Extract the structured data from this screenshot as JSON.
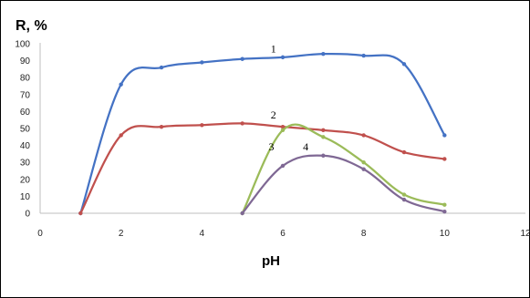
{
  "chart_data": {
    "type": "line",
    "title": "",
    "ylabel": "R, %",
    "xlabel": "pH",
    "xlim": [
      0,
      12
    ],
    "ylim": [
      0,
      100
    ],
    "x_ticks": [
      0,
      2,
      4,
      6,
      8,
      10,
      12
    ],
    "y_ticks": [
      0,
      10,
      20,
      30,
      40,
      50,
      60,
      70,
      80,
      90,
      100
    ],
    "grid": false,
    "legend": "none",
    "series": [
      {
        "name": "1",
        "color": "#4472c4",
        "points": [
          [
            1,
            0
          ],
          [
            2,
            76
          ],
          [
            3,
            86
          ],
          [
            4,
            89
          ],
          [
            5,
            91
          ],
          [
            6,
            92
          ],
          [
            7,
            94
          ],
          [
            8,
            93
          ],
          [
            9,
            88
          ],
          [
            10,
            46
          ]
        ]
      },
      {
        "name": "2",
        "color": "#c0504d",
        "points": [
          [
            1,
            0
          ],
          [
            2,
            46
          ],
          [
            3,
            51
          ],
          [
            4,
            52
          ],
          [
            5,
            53
          ],
          [
            6,
            51
          ],
          [
            7,
            49
          ],
          [
            8,
            46
          ],
          [
            9,
            36
          ],
          [
            10,
            32
          ]
        ]
      },
      {
        "name": "3",
        "color": "#9bbb59",
        "points": [
          [
            5,
            0
          ],
          [
            6,
            49
          ],
          [
            7,
            45
          ],
          [
            8,
            30
          ],
          [
            9,
            11
          ],
          [
            10,
            5
          ]
        ]
      },
      {
        "name": "4",
        "color": "#7f6894",
        "points": [
          [
            5,
            0
          ],
          [
            6,
            28
          ],
          [
            7,
            34
          ],
          [
            8,
            26
          ],
          [
            9,
            8
          ],
          [
            10,
            1
          ]
        ]
      }
    ],
    "series_labels": [
      {
        "text": "1",
        "x": 5.7,
        "y": 95
      },
      {
        "text": "2",
        "x": 5.7,
        "y": 56
      },
      {
        "text": "3",
        "x": 5.65,
        "y": 37
      },
      {
        "text": "4",
        "x": 6.5,
        "y": 37
      }
    ]
  }
}
